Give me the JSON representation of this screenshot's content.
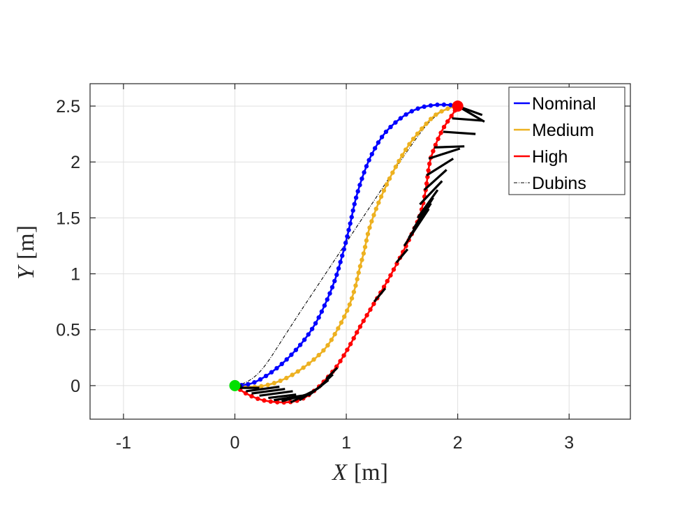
{
  "chart_data": {
    "type": "line",
    "title": "",
    "xlabel": {
      "var": "X",
      "unit": "[m]"
    },
    "ylabel": {
      "var": "Y",
      "unit": "[m]"
    },
    "xlim": [
      -1.3,
      3.55
    ],
    "ylim": [
      -0.3,
      2.7
    ],
    "xticks": [
      -1,
      0,
      1,
      2,
      3
    ],
    "xtick_labels": [
      "-1",
      "0",
      "1",
      "2",
      "3"
    ],
    "yticks": [
      0,
      0.5,
      1,
      1.5,
      2,
      2.5
    ],
    "ytick_labels": [
      "0",
      "0.5",
      "1",
      "1.5",
      "2",
      "2.5"
    ],
    "grid": true,
    "legend_position": "top-right",
    "start_point": {
      "x": 0,
      "y": 0,
      "color": "#00e000"
    },
    "end_point": {
      "x": 2,
      "y": 2.5,
      "color": "#ff0000"
    },
    "series": [
      {
        "name": "Nominal",
        "color": "#0000ff",
        "style": "solid-markers",
        "x": [
          0.0,
          0.15,
          0.3,
          0.45,
          0.6,
          0.72,
          0.82,
          0.9,
          0.96,
          1.0,
          1.04,
          1.08,
          1.14,
          1.22,
          1.34,
          1.5,
          1.65,
          1.8,
          1.92,
          2.0
        ],
        "y": [
          0.0,
          0.02,
          0.1,
          0.22,
          0.38,
          0.55,
          0.75,
          0.95,
          1.15,
          1.3,
          1.47,
          1.65,
          1.85,
          2.05,
          2.25,
          2.4,
          2.48,
          2.51,
          2.51,
          2.5
        ]
      },
      {
        "name": "Medium",
        "color": "#edb120",
        "style": "solid-markers",
        "x": [
          0.0,
          0.2,
          0.4,
          0.6,
          0.8,
          0.92,
          1.02,
          1.08,
          1.12,
          1.16,
          1.2,
          1.26,
          1.34,
          1.44,
          1.56,
          1.68,
          1.8,
          1.92,
          2.0
        ],
        "y": [
          0.0,
          -0.01,
          0.04,
          0.15,
          0.32,
          0.5,
          0.7,
          0.88,
          1.05,
          1.2,
          1.38,
          1.56,
          1.75,
          1.95,
          2.15,
          2.3,
          2.42,
          2.48,
          2.5
        ]
      },
      {
        "name": "High",
        "color": "#ff0000",
        "style": "solid-markers",
        "x": [
          0.0,
          0.1,
          0.25,
          0.45,
          0.6,
          0.72,
          0.82,
          0.92,
          1.02,
          1.12,
          1.24,
          1.36,
          1.48,
          1.58,
          1.66,
          1.7,
          1.72,
          1.75,
          1.8,
          1.87,
          1.95,
          2.0
        ],
        "y": [
          0.0,
          -0.07,
          -0.13,
          -0.15,
          -0.12,
          -0.04,
          0.06,
          0.18,
          0.34,
          0.52,
          0.72,
          0.92,
          1.14,
          1.34,
          1.52,
          1.68,
          1.8,
          2.0,
          2.15,
          2.3,
          2.42,
          2.5
        ]
      },
      {
        "name": "Dubins",
        "color": "#000000",
        "style": "dashdot",
        "x": [
          0.0,
          0.1,
          0.2,
          0.3,
          0.45,
          0.6,
          0.8,
          1.0,
          1.2,
          1.4,
          1.55,
          1.65,
          1.72,
          1.78,
          1.84,
          1.9,
          1.95,
          2.0
        ],
        "y": [
          0.0,
          0.03,
          0.1,
          0.22,
          0.45,
          0.68,
          0.98,
          1.28,
          1.58,
          1.88,
          2.1,
          2.24,
          2.33,
          2.39,
          2.44,
          2.47,
          2.49,
          2.5
        ]
      }
    ],
    "heading_segments": [
      [
        0.0,
        0.0,
        0.06,
        0.0
      ],
      [
        0.04,
        -0.02,
        0.22,
        -0.02
      ],
      [
        0.1,
        -0.05,
        0.4,
        -0.01
      ],
      [
        0.15,
        -0.07,
        0.45,
        -0.03
      ],
      [
        0.22,
        -0.09,
        0.52,
        -0.05
      ],
      [
        0.3,
        -0.11,
        0.55,
        -0.08
      ],
      [
        0.35,
        -0.13,
        0.6,
        -0.09
      ],
      [
        0.42,
        -0.14,
        0.68,
        -0.07
      ],
      [
        0.5,
        -0.15,
        0.72,
        -0.04
      ],
      [
        0.58,
        -0.13,
        0.78,
        0.0
      ],
      [
        0.66,
        -0.09,
        0.84,
        0.05
      ],
      [
        0.74,
        -0.03,
        0.88,
        0.1
      ],
      [
        0.82,
        0.06,
        0.92,
        0.16
      ],
      [
        1.25,
        0.75,
        1.35,
        0.87
      ],
      [
        1.45,
        1.1,
        1.55,
        1.22
      ],
      [
        1.52,
        1.25,
        1.74,
        1.58
      ],
      [
        1.56,
        1.32,
        1.76,
        1.63
      ],
      [
        1.6,
        1.4,
        1.78,
        1.68
      ],
      [
        1.64,
        1.5,
        1.82,
        1.75
      ],
      [
        1.66,
        1.62,
        1.86,
        1.83
      ],
      [
        1.7,
        1.75,
        1.9,
        1.93
      ],
      [
        1.72,
        1.88,
        1.96,
        2.03
      ],
      [
        1.74,
        2.03,
        2.02,
        2.12
      ],
      [
        1.79,
        2.13,
        2.06,
        2.14
      ],
      [
        1.87,
        2.27,
        2.16,
        2.25
      ],
      [
        1.95,
        2.39,
        2.22,
        2.37
      ],
      [
        2.0,
        2.5,
        2.22,
        2.42
      ],
      [
        2.0,
        2.5,
        2.24,
        2.36
      ]
    ]
  }
}
